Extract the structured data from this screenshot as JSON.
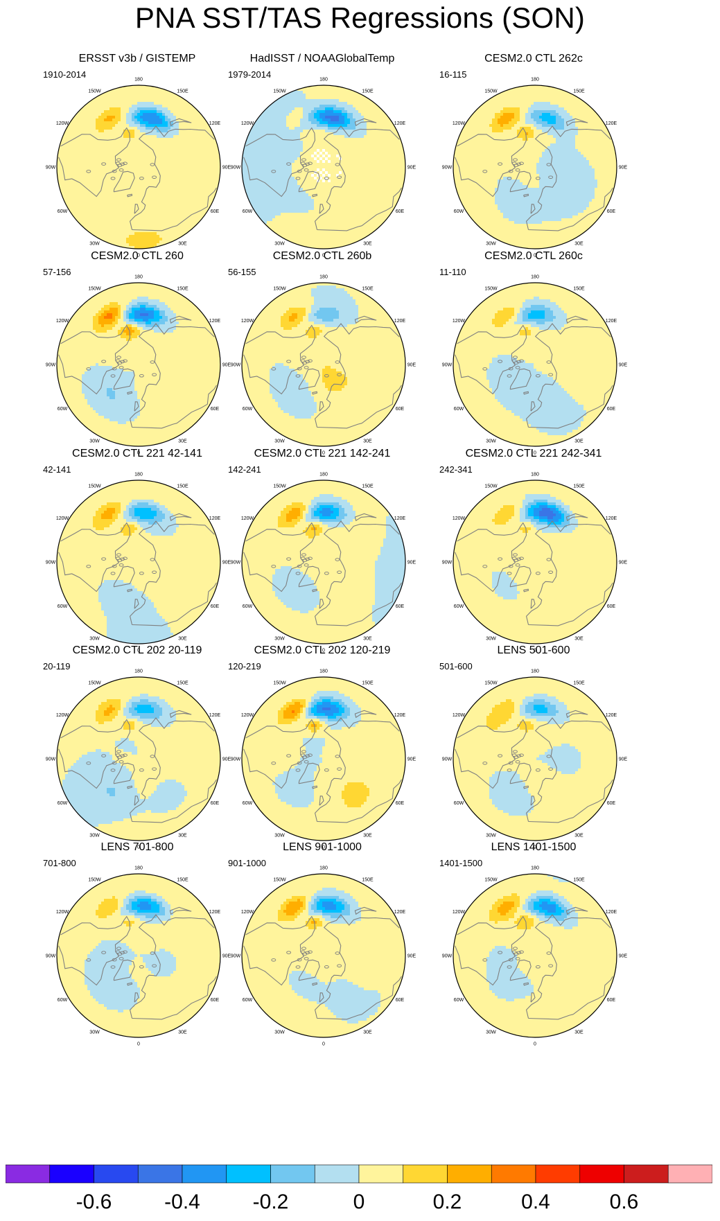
{
  "chart_data": {
    "type": "heatmap",
    "projection": "north polar stereographic",
    "title": "PNA SST/TAS Regressions (SON)",
    "colors": {
      "land_outline": "#7f7f7f",
      "missing": "#ffffff"
    },
    "longitude_labels": [
      "180",
      "150E",
      "120E",
      "90E",
      "60E",
      "30E",
      "0",
      "30W",
      "60W",
      "90W",
      "120W",
      "150W"
    ],
    "colorbar": {
      "levels": [
        -0.7,
        -0.6,
        -0.5,
        -0.4,
        -0.3,
        -0.2,
        -0.1,
        0,
        0.1,
        0.2,
        0.3,
        0.4,
        0.5,
        0.6,
        0.7
      ],
      "colors": [
        "#8a2be2",
        "#1a00ff",
        "#2849f0",
        "#3a75e6",
        "#2196f3",
        "#00c0ff",
        "#72c7f0",
        "#b3dff0",
        "#fff49c",
        "#ffd733",
        "#ffae00",
        "#ff7a00",
        "#ff3c00",
        "#ee0000",
        "#cc1d1d",
        "#ffb0b4"
      ],
      "tick_labels": [
        "-0.6",
        "-0.4",
        "-0.2",
        "0",
        "0.2",
        "0.4",
        "0.6"
      ],
      "tick_values": [
        -0.6,
        -0.4,
        -0.2,
        0,
        0.2,
        0.4,
        0.6
      ]
    },
    "panels": [
      {
        "title": "ERSST v3b / GISTEMP",
        "years": "1910-2014",
        "blob_lon": 165,
        "blob_val": -0.45,
        "warm_lon": 125,
        "warm_val": 0.2,
        "masked": false,
        "seed": 1
      },
      {
        "title": "HadISST / NOAAGlobalTemp",
        "years": "1979-2014",
        "blob_lon": 170,
        "blob_val": -0.48,
        "warm_lon": 120,
        "warm_val": 0.08,
        "masked": true,
        "seed": 2
      },
      {
        "title": "CESM2.0 CTL 262c",
        "years": "16-115",
        "blob_lon": 165,
        "blob_val": -0.3,
        "warm_lon": 130,
        "warm_val": 0.25,
        "masked": false,
        "seed": 3
      },
      {
        "title": "CESM2.0 CTL 260",
        "years": "57-156",
        "blob_lon": 175,
        "blob_val": -0.48,
        "warm_lon": 135,
        "warm_val": 0.32,
        "masked": false,
        "seed": 4
      },
      {
        "title": "CESM2.0 CTL 260b",
        "years": "56-155",
        "blob_lon": 180,
        "blob_val": -0.18,
        "warm_lon": 140,
        "warm_val": 0.22,
        "masked": false,
        "seed": 5
      },
      {
        "title": "CESM2.0 CTL 260c",
        "years": "11-110",
        "blob_lon": 180,
        "blob_val": -0.28,
        "warm_lon": 140,
        "warm_val": 0.2,
        "masked": false,
        "seed": 6
      },
      {
        "title": "CESM2.0 CTL 221 42-141",
        "years": "42-141",
        "blob_lon": 175,
        "blob_val": -0.32,
        "warm_lon": 140,
        "warm_val": 0.22,
        "masked": false,
        "seed": 7
      },
      {
        "title": "CESM2.0 CTL 221 142-241",
        "years": "142-241",
        "blob_lon": 178,
        "blob_val": -0.38,
        "warm_lon": 138,
        "warm_val": 0.28,
        "masked": false,
        "seed": 8
      },
      {
        "title": "CESM2.0 CTL 221 242-341",
        "years": "242-341",
        "blob_lon": 165,
        "blob_val": -0.5,
        "warm_lon": 140,
        "warm_val": 0.2,
        "masked": false,
        "seed": 9
      },
      {
        "title": "CESM2.0 CTL 202 20-119",
        "years": "20-119",
        "blob_lon": 175,
        "blob_val": -0.32,
        "warm_lon": 135,
        "warm_val": 0.2,
        "masked": false,
        "seed": 10
      },
      {
        "title": "CESM2.0 CTL 202 120-219",
        "years": "120-219",
        "blob_lon": 178,
        "blob_val": -0.45,
        "warm_lon": 140,
        "warm_val": 0.35,
        "masked": false,
        "seed": 11
      },
      {
        "title": "LENS 501-600",
        "years": "501-600",
        "blob_lon": 175,
        "blob_val": -0.3,
        "warm_lon": 135,
        "warm_val": 0.15,
        "masked": false,
        "seed": 12
      },
      {
        "title": "LENS 701-800",
        "years": "701-800",
        "blob_lon": 172,
        "blob_val": -0.4,
        "warm_lon": 130,
        "warm_val": 0.18,
        "masked": false,
        "seed": 13
      },
      {
        "title": "LENS 901-1000",
        "years": "901-1000",
        "blob_lon": 175,
        "blob_val": -0.38,
        "warm_lon": 138,
        "warm_val": 0.3,
        "masked": false,
        "seed": 14
      },
      {
        "title": "LENS 1401-1500",
        "years": "1401-1500",
        "blob_lon": 165,
        "blob_val": -0.45,
        "warm_lon": 125,
        "warm_val": 0.22,
        "masked": false,
        "seed": 15
      }
    ]
  }
}
